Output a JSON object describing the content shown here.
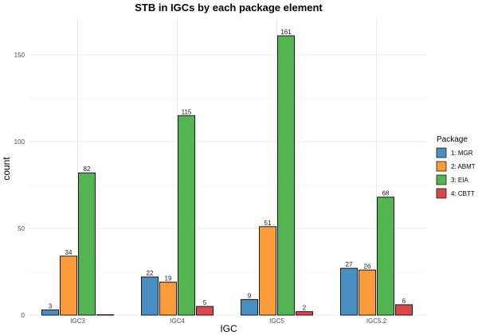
{
  "chart_data": {
    "type": "bar",
    "title": "STB in IGCs by each package element",
    "xlabel": "IGC",
    "ylabel": "count",
    "categories": [
      "IGC3",
      "IGC4",
      "IGC5",
      "IGC5.2"
    ],
    "series": [
      {
        "name": "1: MGR",
        "color": "#4a8fc4",
        "values": [
          3,
          22,
          9,
          27
        ]
      },
      {
        "name": "2: ABMT",
        "color": "#fb9b3a",
        "values": [
          34,
          19,
          51,
          26
        ]
      },
      {
        "name": "3: EIA",
        "color": "#52b552",
        "values": [
          82,
          115,
          161,
          68
        ]
      },
      {
        "name": "4: CBTT",
        "color": "#d9474a",
        "values": [
          0,
          5,
          2,
          6
        ]
      }
    ],
    "ylim": [
      0,
      172
    ],
    "yticks": [
      0,
      50,
      100,
      150
    ],
    "legend_title": "Package",
    "legend_position": "right",
    "grid": true
  }
}
